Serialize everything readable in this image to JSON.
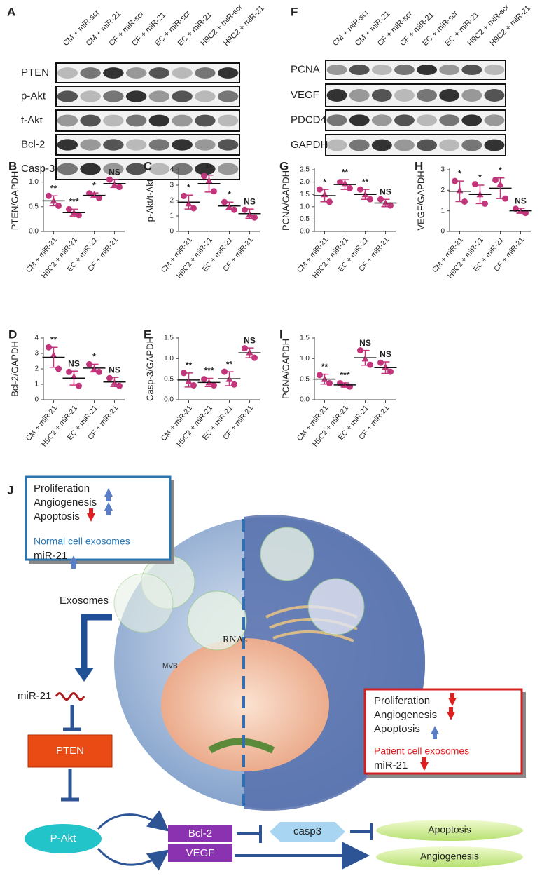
{
  "blots": [
    {
      "panel": "A",
      "lanes": [
        "CM + miR-scr",
        "CM + miR-21",
        "CF + miR-scr",
        "CF + miR-21",
        "EC + miR-scr",
        "EC + miR-21",
        "H9C2 + miR-scr",
        "H9C2 + miR-21"
      ],
      "rows": [
        "PTEN",
        "p-Akt",
        "t-Akt",
        "Bcl-2",
        "Casp-3"
      ]
    },
    {
      "panel": "F",
      "lanes": [
        "CM + miR-scr",
        "CM + miR-21",
        "CF + miR-scr",
        "CF + miR-21",
        "EC + miR-scr",
        "EC + miR-21",
        "H9C2 + miR-scr",
        "H9C2 + miR-21"
      ],
      "rows": [
        "PCNA",
        "VEGF",
        "PDCD4",
        "GAPDH"
      ]
    }
  ],
  "chart_data": [
    {
      "type": "dotplot",
      "panel": "B",
      "ylabel": "PTEN/GAPDH",
      "color": "#c2357b",
      "categories": [
        "CM + miR-21",
        "H9C2 + miR-21",
        "EC + miR-21",
        "CF + miR-21"
      ],
      "points": [
        [
          0.72,
          0.62,
          0.52
        ],
        [
          0.45,
          0.38,
          0.33
        ],
        [
          0.77,
          0.75,
          0.68
        ],
        [
          1.05,
          0.95,
          0.9
        ]
      ],
      "means": [
        0.62,
        0.38,
        0.73,
        0.97
      ],
      "sd": [
        0.1,
        0.07,
        0.05,
        0.08
      ],
      "annotations": [
        "**",
        "***",
        "*",
        "NS"
      ],
      "ylim": [
        0,
        1.25
      ],
      "yticks": [
        {
          "value": 0,
          "label": "0.0"
        },
        {
          "value": 0.5,
          "label": "0.5"
        },
        {
          "value": 1,
          "label": "1.0"
        }
      ]
    },
    {
      "type": "dotplot",
      "panel": "C",
      "ylabel": "p-Akt/t-Akt",
      "color": "#c2357b",
      "categories": [
        "CM + miR-21",
        "H9C2 + miR-21",
        "EC + miR-21",
        "CF + miR-21"
      ],
      "points": [
        [
          2.3,
          1.8,
          1.5
        ],
        [
          3.6,
          3.3,
          2.6
        ],
        [
          1.9,
          1.6,
          1.4
        ],
        [
          1.4,
          1.1,
          0.9
        ]
      ],
      "means": [
        1.9,
        3.1,
        1.65,
        1.15
      ],
      "sd": [
        0.45,
        0.55,
        0.25,
        0.3
      ],
      "annotations": [
        "*",
        "**",
        "*",
        "NS"
      ],
      "ylim": [
        0,
        4
      ],
      "yticks": [
        0,
        1,
        2,
        3,
        4
      ]
    },
    {
      "type": "dotplot",
      "panel": "G",
      "ylabel": "PCNA/GAPDH",
      "color": "#c2357b",
      "categories": [
        "CM + miR-21",
        "H9C2 + miR-21",
        "EC + miR-21",
        "CF + miR-21"
      ],
      "points": [
        [
          1.7,
          1.5,
          1.2
        ],
        [
          2.0,
          1.95,
          1.75
        ],
        [
          1.7,
          1.5,
          1.3
        ],
        [
          1.3,
          1.15,
          1.05
        ]
      ],
      "means": [
        1.45,
        1.9,
        1.5,
        1.15
      ],
      "sd": [
        0.25,
        0.2,
        0.2,
        0.15
      ],
      "annotations": [
        "*",
        "**",
        "**",
        "NS"
      ],
      "ylim": [
        0,
        2.5
      ],
      "yticks": [
        {
          "value": 0,
          "label": "0.0"
        },
        {
          "value": 0.5,
          "label": "0.5"
        },
        {
          "value": 1,
          "label": "1.0"
        },
        {
          "value": 1.5,
          "label": "1.5"
        },
        {
          "value": 2,
          "label": "2.0"
        },
        {
          "value": 2.5,
          "label": "2.5"
        }
      ]
    },
    {
      "type": "dotplot",
      "panel": "H",
      "ylabel": "VEGF/GAPDH",
      "color": "#c2357b",
      "categories": [
        "CM + miR-21",
        "H9C2 + miR-21",
        "EC + miR-21",
        "CF + miR-21"
      ],
      "points": [
        [
          2.45,
          2.0,
          1.45
        ],
        [
          2.3,
          1.8,
          1.35
        ],
        [
          2.5,
          2.3,
          1.6
        ],
        [
          1.1,
          1.0,
          0.9
        ]
      ],
      "means": [
        1.95,
        1.8,
        2.1,
        1.0
      ],
      "sd": [
        0.5,
        0.45,
        0.5,
        0.12
      ],
      "annotations": [
        "*",
        "*",
        "*",
        "NS"
      ],
      "ylim": [
        0,
        3
      ],
      "yticks": [
        0,
        1,
        2,
        3
      ]
    },
    {
      "type": "dotplot",
      "panel": "D",
      "ylabel": "Bcl-2/GAPDH",
      "color": "#c2357b",
      "categories": [
        "CM + miR-21",
        "H9C2 + miR-21",
        "EC + miR-21",
        "CF + miR-21"
      ],
      "points": [
        [
          3.4,
          2.9,
          2.0
        ],
        [
          1.8,
          1.5,
          0.9
        ],
        [
          2.3,
          2.0,
          1.8
        ],
        [
          1.4,
          1.1,
          0.9
        ]
      ],
      "means": [
        2.75,
        1.4,
        2.05,
        1.15
      ],
      "sd": [
        0.65,
        0.45,
        0.25,
        0.3
      ],
      "annotations": [
        "**",
        "NS",
        "*",
        "NS"
      ],
      "ylim": [
        0,
        4
      ],
      "yticks": [
        0,
        1,
        2,
        3,
        4
      ]
    },
    {
      "type": "dotplot",
      "panel": "E",
      "ylabel": "Casp-3/GAPDH",
      "color": "#c2357b",
      "categories": [
        "CM + miR-21",
        "H9C2 + miR-21",
        "EC + miR-21",
        "CF + miR-21"
      ],
      "points": [
        [
          0.65,
          0.45,
          0.35
        ],
        [
          0.5,
          0.42,
          0.35
        ],
        [
          0.68,
          0.5,
          0.37
        ],
        [
          1.25,
          1.15,
          1.02
        ]
      ],
      "means": [
        0.48,
        0.42,
        0.51,
        1.14
      ],
      "sd": [
        0.17,
        0.1,
        0.17,
        0.12
      ],
      "annotations": [
        "**",
        "***",
        "**",
        "NS"
      ],
      "ylim": [
        0,
        1.5
      ],
      "yticks": [
        {
          "value": 0,
          "label": "0.0"
        },
        {
          "value": 0.5,
          "label": "0.5"
        },
        {
          "value": 1,
          "label": "1.0"
        },
        {
          "value": 1.5,
          "label": "1.5"
        }
      ]
    },
    {
      "type": "dotplot",
      "panel": "I",
      "ylabel": "PCNA/GAPDH",
      "color": "#c2357b",
      "categories": [
        "CM + miR-21",
        "H9C2 + miR-21",
        "EC + miR-21",
        "CF + miR-21"
      ],
      "points": [
        [
          0.6,
          0.5,
          0.4
        ],
        [
          0.4,
          0.36,
          0.32
        ],
        [
          1.2,
          1.0,
          0.85
        ],
        [
          0.9,
          0.8,
          0.68
        ]
      ],
      "means": [
        0.5,
        0.36,
        1.02,
        0.78
      ],
      "sd": [
        0.12,
        0.05,
        0.18,
        0.14
      ],
      "annotations": [
        "**",
        "***",
        "NS",
        "NS"
      ],
      "ylim": [
        0,
        1.5
      ],
      "yticks": [
        {
          "value": 0,
          "label": "0.0"
        },
        {
          "value": 0.5,
          "label": "0.5"
        },
        {
          "value": 1,
          "label": "1.0"
        },
        {
          "value": 1.5,
          "label": "1.5"
        }
      ]
    }
  ],
  "diagram": {
    "panel": "J",
    "normal_box": [
      "Proliferation",
      "Angiogenesis",
      "Apoptosis",
      "Normal cell exosomes",
      "miR-21"
    ],
    "patient_box": [
      "Proliferation",
      "Angiogenesis",
      "Apoptosis",
      "Patient cell exosomes",
      "miR-21"
    ],
    "exosomes": "Exosomes",
    "mirna": "miR-21",
    "pten": "PTEN",
    "pakt": "P-Akt",
    "bcl2": "Bcl-2",
    "vegf": "VEGF",
    "casp3": "casp3",
    "apoptosis": "Apoptosis",
    "angiogenesis": "Angiogenesis",
    "rnas": "RNAs",
    "mvb": "MVB"
  }
}
